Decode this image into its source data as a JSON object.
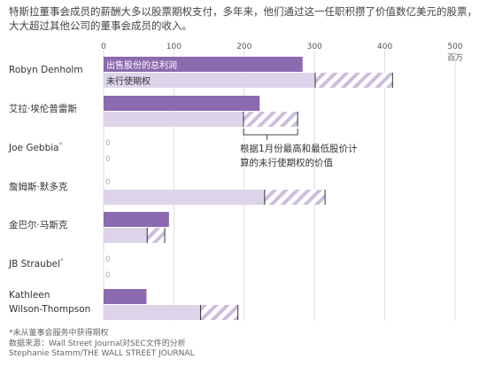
{
  "headline": {
    "line1": "特斯拉董事会成员的薪酬大多以股票期权支付，多年来，他们通过这一任职积攒了价值数亿美元的股票，",
    "line2": "大大超过其他公司的董事会成员的收入。"
  },
  "colors": {
    "sold": "#8b6aaf",
    "unexercised": "#ddd4ea",
    "range_hatch": "#cbbedd",
    "gridline": "#dddddd",
    "asterisk": "#a07ab8"
  },
  "chart_data": {
    "type": "bar",
    "orientation": "horizontal",
    "unit_label": "百万",
    "x_ticks": [
      "0",
      "100",
      "200",
      "300",
      "400",
      "500"
    ],
    "xlim": [
      0,
      500
    ],
    "grid": true,
    "legend": {
      "placement": "inside first row",
      "sold_label": "出售股份的总利润",
      "unexercised_label": "未行使期权"
    },
    "annotation": {
      "line1": "根据1月份最高和最低股价计",
      "line2": "算的未行使期权的价值"
    },
    "categories": [
      "Robyn Denholm",
      "艾拉·埃伦普雷斯",
      "Joe Gebbia",
      "詹姆斯·默多克",
      "金巴尔·马斯克",
      "JB Straubel",
      "Kathleen Wilson-Thompson"
    ],
    "category_lines": [
      [
        "Robyn Denholm"
      ],
      [
        "艾拉·埃伦普雷斯"
      ],
      [
        "Joe Gebbia"
      ],
      [
        "詹姆斯·默多克"
      ],
      [
        "金巴尔·马斯克"
      ],
      [
        "JB Straubel"
      ],
      [
        "Kathleen",
        "Wilson-Thompson"
      ]
    ],
    "asterisk": [
      false,
      false,
      true,
      false,
      false,
      true,
      false
    ],
    "series": [
      {
        "name": "出售股份的总利润",
        "values": [
          283,
          222,
          0,
          0,
          93,
          0,
          61
        ]
      },
      {
        "name": "未行使期权",
        "low": [
          301,
          199,
          0,
          229,
          62,
          0,
          138
        ],
        "high": [
          411,
          276,
          0,
          315,
          87,
          0,
          191
        ]
      }
    ],
    "zero_label": "0"
  },
  "footer": {
    "note": "*未从董事会服务中获得期权",
    "source": "数据来源：Wall Street Journal对SEC文件的分析",
    "credit": "Stephanie Stamm/THE WALL STREET JOURNAL"
  }
}
